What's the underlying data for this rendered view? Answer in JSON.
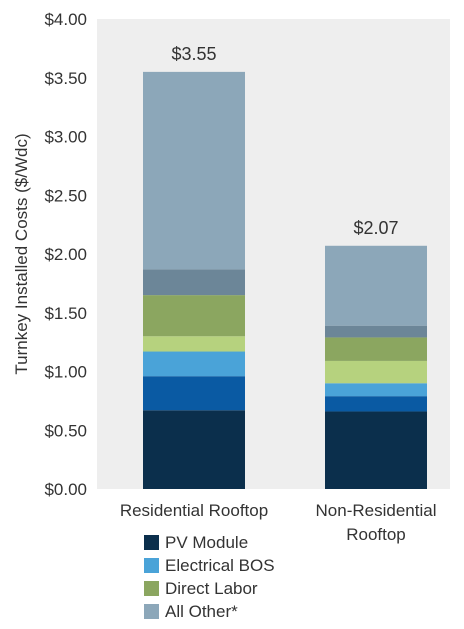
{
  "chart_data": {
    "type": "bar",
    "stacked": true,
    "categories": [
      "Residential Rooftop",
      "Non-Residential Rooftop"
    ],
    "category_lines": [
      [
        "Residential Rooftop"
      ],
      [
        "Non-Residential",
        "Rooftop"
      ]
    ],
    "ylabel": "Turnkey Installed Costs ($/Wdc)",
    "ylim": [
      0,
      4.0
    ],
    "yticks": [
      0,
      0.5,
      1.0,
      1.5,
      2.0,
      2.5,
      3.0,
      3.5,
      4.0
    ],
    "ytick_labels": [
      "$0.00",
      "$0.50",
      "$1.00",
      "$1.50",
      "$2.00",
      "$2.50",
      "$3.00",
      "$3.50",
      "$4.00"
    ],
    "totals": [
      3.55,
      2.07
    ],
    "total_labels": [
      "$3.55",
      "$2.07"
    ],
    "series": [
      {
        "name": "PV Module",
        "color": "#0b2f4c",
        "values": [
          0.67,
          0.66
        ],
        "in_legend": true
      },
      {
        "name": "",
        "color": "#0a5aa3",
        "values": [
          0.29,
          0.13
        ],
        "in_legend": false
      },
      {
        "name": "Electrical BOS",
        "color": "#4aa3d8",
        "values": [
          0.21,
          0.11
        ],
        "in_legend": true
      },
      {
        "name": "",
        "color": "#b6d27e",
        "values": [
          0.13,
          0.19
        ],
        "in_legend": false
      },
      {
        "name": "Direct Labor",
        "color": "#8ba660",
        "values": [
          0.35,
          0.2
        ],
        "in_legend": true
      },
      {
        "name": "",
        "color": "#6c8698",
        "values": [
          0.22,
          0.1
        ],
        "in_legend": false
      },
      {
        "name": "All Other*",
        "color": "#8ca7b9",
        "values": [
          1.68,
          0.68
        ],
        "in_legend": true
      }
    ],
    "grid": false,
    "legend_position": "bottom"
  }
}
